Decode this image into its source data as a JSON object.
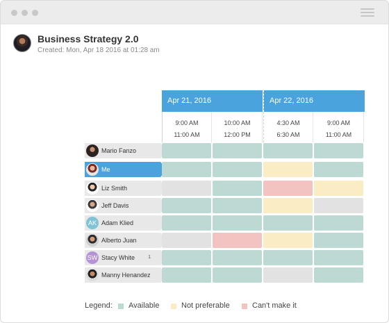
{
  "poll": {
    "title": "Business Strategy 2.0",
    "created": "Created: Mon, Apr 18 2016 at 01:28 am"
  },
  "dates": [
    {
      "label": "Apr 21, 2016"
    },
    {
      "label": "Apr 22, 2016"
    }
  ],
  "slots": [
    {
      "start": "9:00 AM",
      "end": "11:00 AM"
    },
    {
      "start": "10:00 AM",
      "end": "12:00 PM"
    },
    {
      "start": "4:30 AM",
      "end": "6:30 AM"
    },
    {
      "start": "9:00 AM",
      "end": "11:00 AM"
    }
  ],
  "participants": [
    {
      "name": "Mario Fanzo",
      "avatar": "photo",
      "availability": [
        "available",
        "available",
        "available",
        "available"
      ]
    },
    {
      "name": "Me",
      "avatar": "photo",
      "availability": [
        "available",
        "available",
        "not-preferable",
        "available"
      ]
    },
    {
      "name": "Liz Smith",
      "avatar": "photo",
      "availability": [
        "none",
        "available",
        "cant-make-it",
        "not-preferable"
      ]
    },
    {
      "name": "Jeff Davis",
      "avatar": "photo",
      "availability": [
        "available",
        "available",
        "not-preferable",
        "none"
      ]
    },
    {
      "name": "Adam Klied",
      "avatar": "initials",
      "initials": "AK",
      "avatar_color": "#7fc3d4",
      "availability": [
        "available",
        "available",
        "available",
        "available"
      ]
    },
    {
      "name": "Alberto Juan",
      "avatar": "photo",
      "availability": [
        "none",
        "cant-make-it",
        "not-preferable",
        "available"
      ]
    },
    {
      "name": "Stacy White",
      "avatar": "initials",
      "initials": "SW",
      "avatar_color": "#b592d4",
      "extra": "1",
      "availability": [
        "available",
        "available",
        "available",
        "available"
      ]
    },
    {
      "name": "Manny Henandez",
      "avatar": "photo",
      "availability": [
        "available",
        "available",
        "none",
        "available"
      ]
    }
  ],
  "legend": {
    "label": "Legend:",
    "items": [
      {
        "label": "Available",
        "color": "#bcd9d3"
      },
      {
        "label": "Not preferable",
        "color": "#faecc4"
      },
      {
        "label": "Can't make it",
        "color": "#f2c3c1"
      }
    ]
  },
  "colors": {
    "accent": "#4aa3dc",
    "available": "#bcd9d3",
    "not_preferable": "#faecc4",
    "cant_make_it": "#f2c3c1",
    "no_response": "#e2e2e2"
  }
}
